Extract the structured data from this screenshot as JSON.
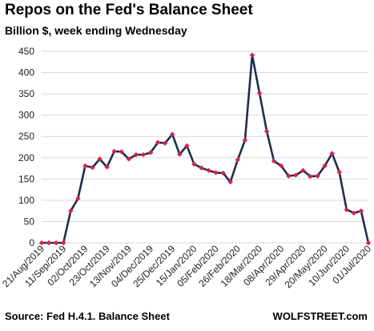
{
  "chart_data": {
    "type": "line",
    "title": "Repos on the Fed's Balance Sheet",
    "subtitle": "Billion $, week ending Wednesday",
    "source": "Source: Fed H.4.1. Balance Sheet",
    "brand": "WOLFSTREET.com",
    "xlabel": "",
    "ylabel": "",
    "ylim": [
      0,
      450
    ],
    "yticks": [
      0,
      50,
      100,
      150,
      200,
      250,
      300,
      350,
      400,
      450
    ],
    "grid": true,
    "legend": "none",
    "line_color": "#1f2d4e",
    "marker_color": "#d6234a",
    "x_tick_labels": [
      "21/Aug/2019",
      "11/Sep/2019",
      "02/Oct/2019",
      "23/Oct/2019",
      "13/Nov/2019",
      "04/Dec/2019",
      "25/Dec/2019",
      "15/Jan/2020",
      "05/Feb/2020",
      "26/Feb/2020",
      "18/Mar/2020",
      "08/Apr/2020",
      "29/Apr/2020",
      "20/May/2020",
      "10/Jun/2020",
      "01/Jul/2020"
    ],
    "series": [
      {
        "values": [
          0,
          0,
          0,
          0,
          75,
          104,
          181,
          177,
          197,
          178,
          215,
          214,
          197,
          207,
          207,
          212,
          236,
          234,
          255,
          208,
          228,
          185,
          176,
          170,
          165,
          164,
          143,
          195,
          241,
          441,
          352,
          262,
          192,
          181,
          157,
          159,
          170,
          156,
          157,
          181,
          210,
          166,
          78,
          70,
          75,
          0
        ]
      }
    ]
  }
}
